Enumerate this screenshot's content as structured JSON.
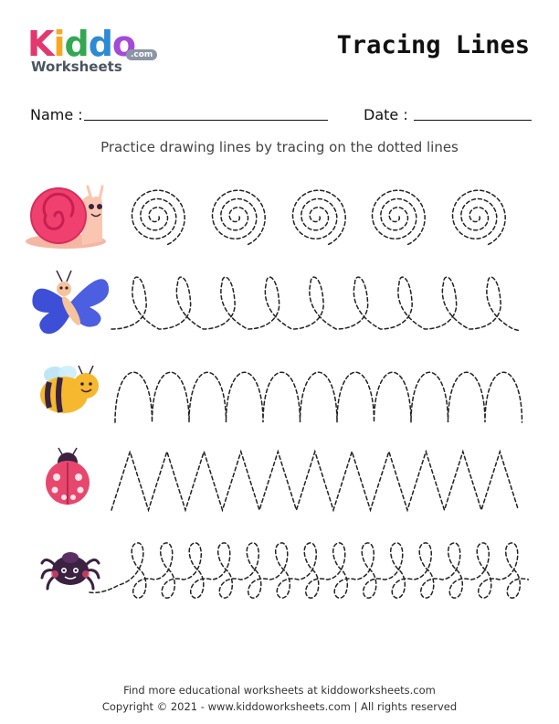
{
  "logo": {
    "letters": [
      "K",
      "i",
      "d",
      "d",
      "o"
    ],
    "sub": "Worksheets",
    "com": ".com"
  },
  "title": "Tracing Lines",
  "form": {
    "name_label": "Name :",
    "date_label": "Date :"
  },
  "instruction": "Practice drawing lines by tracing on the dotted lines",
  "rows": [
    {
      "character": "snail-icon",
      "pattern": "spiral"
    },
    {
      "character": "butterfly-icon",
      "pattern": "loops"
    },
    {
      "character": "bee-icon",
      "pattern": "arches"
    },
    {
      "character": "ladybug-icon",
      "pattern": "zigzag"
    },
    {
      "character": "spider-icon",
      "pattern": "figure-eight"
    }
  ],
  "footer": {
    "line1": "Find more educational worksheets at kiddoworksheets.com",
    "line2": "Copyright © 2021 - www.kiddoworksheets.com  |  All rights reserved"
  },
  "colors": {
    "snail_shell": "#f0406f",
    "butterfly": "#3d4fd6",
    "bee": "#f5b82e",
    "ladybug": "#e8476d",
    "spider": "#3a2240"
  }
}
